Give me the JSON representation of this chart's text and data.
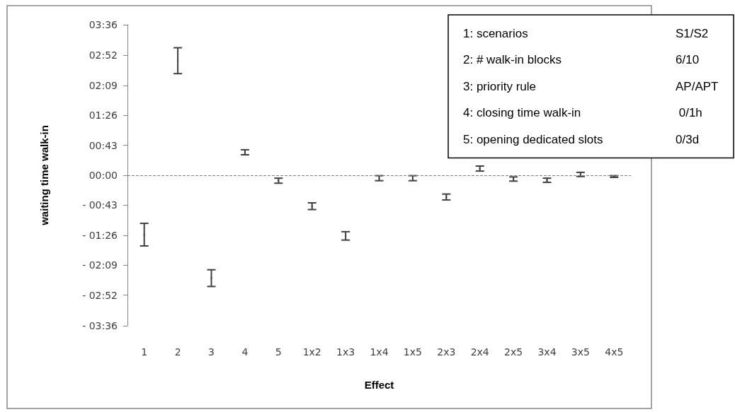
{
  "chart_data": {
    "type": "scatter",
    "xlabel": "Effect",
    "ylabel": "waiting time walk-in",
    "categories": [
      "1",
      "2",
      "3",
      "4",
      "5",
      "1x2",
      "1x3",
      "1x4",
      "1x5",
      "2x3",
      "2x4",
      "2x5",
      "3x4",
      "3x5",
      "4x5"
    ],
    "values": [
      -1.42,
      2.74,
      -2.46,
      0.55,
      -0.13,
      -0.74,
      -1.45,
      -0.07,
      -0.07,
      -0.52,
      0.16,
      -0.09,
      -0.12,
      0.02,
      -0.03
    ],
    "errors": [
      0.27,
      0.31,
      0.2,
      0.06,
      0.06,
      0.08,
      0.1,
      0.06,
      0.06,
      0.07,
      0.06,
      0.05,
      0.05,
      0.05,
      0.02
    ],
    "color": "#404040",
    "ylim": [
      -3.6,
      3.6
    ],
    "yticks": [
      {
        "value": 3.6,
        "label": "03:36"
      },
      {
        "value": 2.8667,
        "label": "02:52"
      },
      {
        "value": 2.15,
        "label": "02:09"
      },
      {
        "value": 1.4333,
        "label": "01:26"
      },
      {
        "value": 0.7167,
        "label": "00:43"
      },
      {
        "value": 0,
        "label": "00:00"
      },
      {
        "value": -0.7167,
        "label": "- 00:43"
      },
      {
        "value": -1.4333,
        "label": "- 01:26"
      },
      {
        "value": -2.15,
        "label": "- 02:09"
      },
      {
        "value": -2.8667,
        "label": "- 02:52"
      },
      {
        "value": -3.6,
        "label": "- 03:36"
      }
    ],
    "ref_lines": [
      {
        "axis": "y",
        "value": 0,
        "color": "#7f7f7f",
        "line_style": "dashed"
      }
    ],
    "annotations": [
      "1: scenarios",
      "S1/S2",
      "2: # walk-in blocks",
      "6/10",
      "3: priority rule",
      "AP/APT",
      "4: closing time walk-in",
      " 0/1h",
      "5: opening dedicated slots",
      "0/3d"
    ]
  }
}
